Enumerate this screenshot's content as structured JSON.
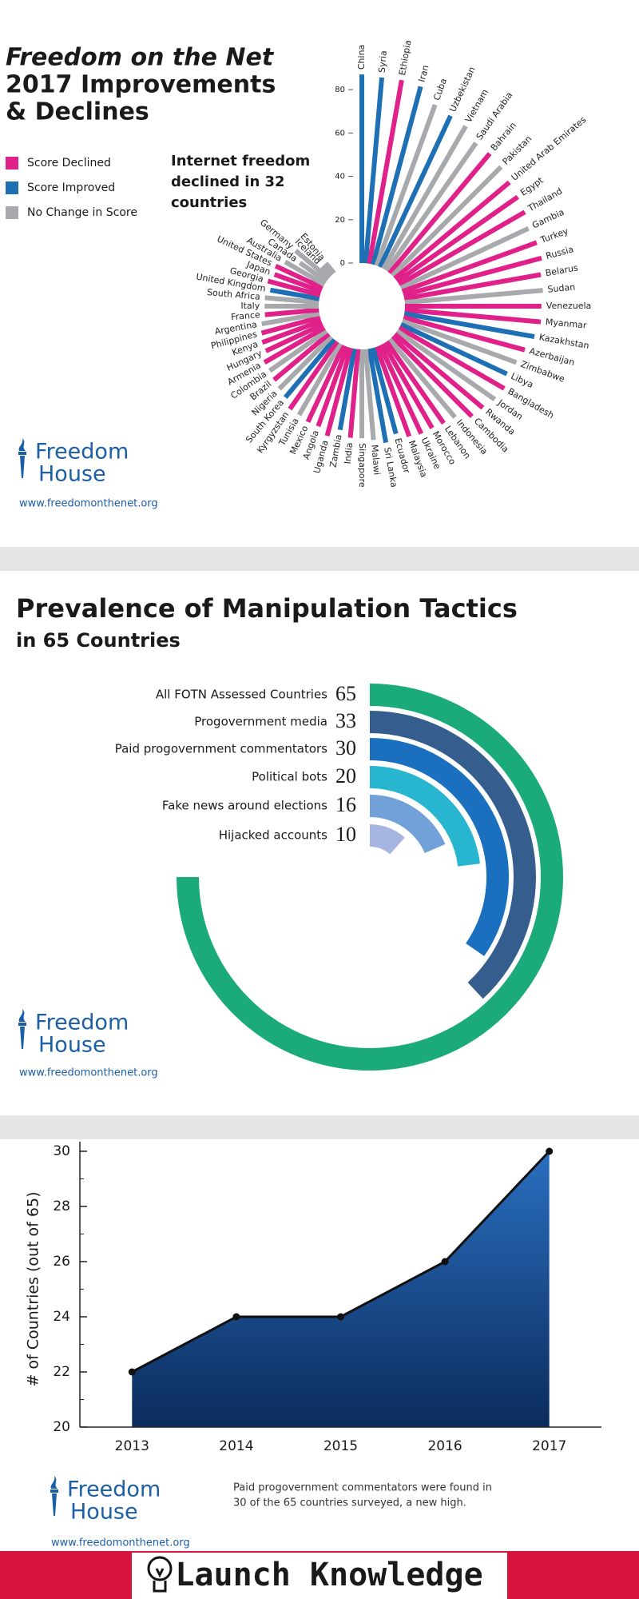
{
  "chart_data": [
    {
      "type": "radial_bar",
      "title": [
        "Freedom on the Net",
        "2017 Improvements",
        "& Declines"
      ],
      "subtitle": [
        "Internet freedom",
        "declined in 32",
        "countries"
      ],
      "legend": [
        {
          "name": "Score Declined",
          "color": "#e0218a"
        },
        {
          "name": "Score Improved",
          "color": "#1f6fb5"
        },
        {
          "name": "No Change in Score",
          "color": "#a7a9ac"
        }
      ],
      "categories": [
        "China",
        "Syria",
        "Ethiopia",
        "Iran",
        "Cuba",
        "Uzbekistan",
        "Vietnam",
        "Saudi Arabia",
        "Bahrain",
        "Pakistan",
        "United Arab Emirates",
        "Egypt",
        "Thailand",
        "Gambia",
        "Turkey",
        "Russia",
        "Belarus",
        "Sudan",
        "Venezuela",
        "Myanmar",
        "Kazakhstan",
        "Azerbaijan",
        "Zimbabwe",
        "Libya",
        "Bangladesh",
        "Jordan",
        "Rwanda",
        "Cambodia",
        "Indonesia",
        "Lebanon",
        "Morocco",
        "Ukraine",
        "Malaysia",
        "Ecuador",
        "Sri Lanka",
        "Malawi",
        "Singapore",
        "India",
        "Zambia",
        "Uganda",
        "Angola",
        "Mexico",
        "Tunisia",
        "Kyrgyzstan",
        "South Korea",
        "Nigeria",
        "Brazil",
        "Colombia",
        "Armenia",
        "Hungary",
        "Kenya",
        "Philippines",
        "Argentina",
        "France",
        "Italy",
        "South Africa",
        "United Kingdom",
        "Georgia",
        "Japan",
        "United States",
        "Australia",
        "Canada",
        "Germany",
        "Iceland",
        "Estonia"
      ],
      "values": [
        87,
        86,
        86,
        85,
        79,
        77,
        76,
        72,
        72,
        71,
        69,
        68,
        67,
        65,
        66,
        66,
        64,
        64,
        63,
        63,
        61,
        58,
        56,
        54,
        56,
        55,
        53,
        52,
        47,
        46,
        45,
        45,
        44,
        41,
        44,
        42,
        41,
        41,
        38,
        42,
        39,
        39,
        38,
        38,
        35,
        34,
        33,
        32,
        32,
        29,
        29,
        28,
        27,
        25,
        25,
        25,
        23,
        25,
        23,
        24,
        21,
        15,
        20,
        6,
        6
      ],
      "colors": [
        "#1f6fb5",
        "#1f6fb5",
        "#e0218a",
        "#1f6fb5",
        "#a7a9ac",
        "#1f6fb5",
        "#a7a9ac",
        "#a7a9ac",
        "#e0218a",
        "#a7a9ac",
        "#e0218a",
        "#e0218a",
        "#e0218a",
        "#a7a9ac",
        "#e0218a",
        "#e0218a",
        "#e0218a",
        "#a7a9ac",
        "#e0218a",
        "#e0218a",
        "#1f6fb5",
        "#e0218a",
        "#a7a9ac",
        "#1f6fb5",
        "#e0218a",
        "#a7a9ac",
        "#e0218a",
        "#e0218a",
        "#a7a9ac",
        "#e0218a",
        "#e0218a",
        "#e0218a",
        "#e0218a",
        "#1f6fb5",
        "#1f6fb5",
        "#a7a9ac",
        "#a7a9ac",
        "#e0218a",
        "#1f6fb5",
        "#e0218a",
        "#e0218a",
        "#e0218a",
        "#a7a9ac",
        "#e0218a",
        "#1f6fb5",
        "#a7a9ac",
        "#e0218a",
        "#a7a9ac",
        "#e0218a",
        "#e0218a",
        "#e0218a",
        "#e0218a",
        "#a7a9ac",
        "#e0218a",
        "#a7a9ac",
        "#a7a9ac",
        "#1f6fb5",
        "#e0218a",
        "#e0218a",
        "#e0218a",
        "#a7a9ac",
        "#a7a9ac",
        "#a7a9ac",
        "#a7a9ac",
        "#a7a9ac"
      ],
      "rlim": [
        0,
        90
      ],
      "rticks": [
        0,
        20,
        40,
        60,
        80
      ]
    },
    {
      "type": "radial_arc",
      "title": "Prevalence of Manipulation Tactics",
      "subtitle": "in 65 Countries",
      "categories": [
        "All FOTN Assessed Countries",
        "Progovernment media",
        "Paid progovernment commentators",
        "Political bots",
        "Fake news around elections",
        "Hijacked accounts"
      ],
      "values": [
        65,
        33,
        30,
        20,
        16,
        10
      ],
      "colors": [
        "#1bab7b",
        "#355e8f",
        "#1a70bf",
        "#28b5cf",
        "#72a0d8",
        "#a7b6e1"
      ]
    },
    {
      "type": "line",
      "ylabel": "# of Countries (out of 65)",
      "categories": [
        "2013",
        "2014",
        "2015",
        "2016",
        "2017"
      ],
      "values": [
        22,
        24,
        24,
        26,
        30
      ],
      "ylim": [
        20,
        30
      ],
      "yticks": [
        20,
        22,
        24,
        26,
        28,
        30
      ],
      "minor_yticks": [
        21,
        23,
        25,
        27,
        29
      ],
      "note": [
        "Paid progovernment commentators were found in",
        "30 of the 65 countries surveyed, a new high."
      ]
    }
  ],
  "brand": {
    "line1": "Freedom",
    "line2": "House",
    "url": "www.freedomonthenet.org"
  },
  "banner": "Launch Knowledge"
}
